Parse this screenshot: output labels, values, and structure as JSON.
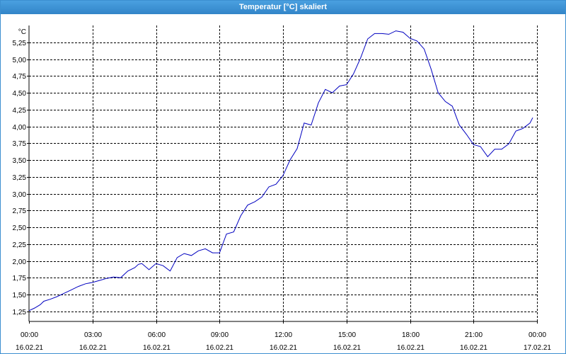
{
  "window": {
    "title": "Temperatur [°C] skaliert"
  },
  "colors": {
    "titlebar": "#3c8fd0",
    "line": "#0000c0",
    "grid": "#000000"
  },
  "chart_data": {
    "type": "line",
    "title": "Temperatur [°C] skaliert",
    "ylabel": "°C",
    "xlabel": "",
    "ylim": [
      1.1,
      5.5
    ],
    "yticks": [
      1.25,
      1.5,
      1.75,
      2.0,
      2.25,
      2.5,
      2.75,
      3.0,
      3.25,
      3.5,
      3.75,
      4.0,
      4.25,
      4.5,
      4.75,
      5.0,
      5.25
    ],
    "ytick_labels": [
      "1,25",
      "1,50",
      "1,75",
      "2,00",
      "2,25",
      "2,50",
      "2,75",
      "3,00",
      "3,25",
      "3,50",
      "3,75",
      "4,00",
      "4,25",
      "4,50",
      "4,75",
      "5,00",
      "5,25"
    ],
    "xlim": [
      0,
      24
    ],
    "xticks": [
      {
        "h": 0,
        "time": "00:00",
        "date": "16.02.21"
      },
      {
        "h": 3,
        "time": "03:00",
        "date": "16.02.21"
      },
      {
        "h": 6,
        "time": "06:00",
        "date": "16.02.21"
      },
      {
        "h": 9,
        "time": "09:00",
        "date": "16.02.21"
      },
      {
        "h": 12,
        "time": "12:00",
        "date": "16.02.21"
      },
      {
        "h": 15,
        "time": "15:00",
        "date": "16.02.21"
      },
      {
        "h": 18,
        "time": "18:00",
        "date": "16.02.21"
      },
      {
        "h": 21,
        "time": "21:00",
        "date": "16.02.21"
      },
      {
        "h": 24,
        "time": "00:00",
        "date": "17.02.21"
      }
    ],
    "grid": true,
    "x": [
      0,
      0.27,
      0.53,
      0.7,
      1.0,
      1.33,
      1.67,
      2.0,
      2.33,
      2.67,
      3.0,
      3.33,
      3.67,
      4.0,
      4.33,
      4.67,
      5.0,
      5.17,
      5.33,
      5.67,
      6.0,
      6.33,
      6.67,
      7.0,
      7.33,
      7.67,
      8.0,
      8.33,
      8.67,
      9.0,
      9.33,
      9.67,
      10.0,
      10.33,
      10.67,
      11.0,
      11.33,
      11.67,
      12.0,
      12.33,
      12.67,
      13.0,
      13.33,
      13.67,
      14.0,
      14.33,
      14.67,
      15.0,
      15.33,
      15.67,
      16.0,
      16.33,
      16.67,
      17.0,
      17.33,
      17.67,
      18.0,
      18.33,
      18.67,
      19.0,
      19.33,
      19.67,
      20.0,
      20.33,
      20.67,
      21.0,
      21.33,
      21.67,
      22.0,
      22.33,
      22.67,
      23.0,
      23.33,
      23.67,
      23.8
    ],
    "y": [
      1.26,
      1.3,
      1.35,
      1.4,
      1.43,
      1.47,
      1.52,
      1.57,
      1.62,
      1.66,
      1.68,
      1.71,
      1.74,
      1.76,
      1.75,
      1.85,
      1.9,
      1.95,
      1.96,
      1.87,
      1.96,
      1.93,
      1.85,
      2.05,
      2.11,
      2.08,
      2.15,
      2.18,
      2.12,
      2.12,
      2.4,
      2.43,
      2.67,
      2.83,
      2.88,
      2.95,
      3.1,
      3.14,
      3.27,
      3.5,
      3.67,
      4.05,
      4.02,
      4.35,
      4.55,
      4.5,
      4.6,
      4.62,
      4.78,
      5.02,
      5.3,
      5.38,
      5.38,
      5.37,
      5.42,
      5.4,
      5.31,
      5.27,
      5.15,
      4.85,
      4.5,
      4.37,
      4.3,
      4.02,
      3.88,
      3.73,
      3.7,
      3.55,
      3.66,
      3.66,
      3.74,
      3.93,
      3.97,
      4.05,
      4.13
    ]
  }
}
